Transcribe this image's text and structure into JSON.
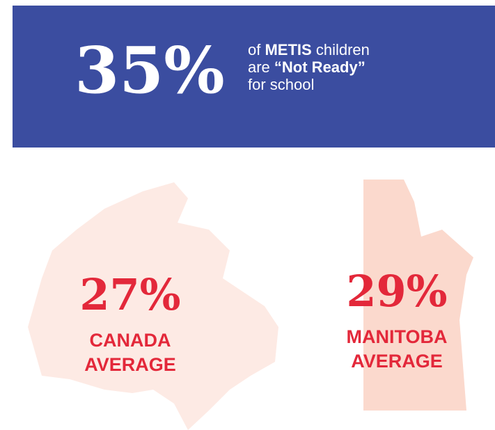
{
  "banner": {
    "stat": "35%",
    "line1": {
      "pre": "of",
      "bold": "METIS",
      "post": "children"
    },
    "line2": {
      "pre": "are",
      "bold": "“Not Ready”"
    },
    "line3": "for school"
  },
  "regions": [
    {
      "stat": "27%",
      "name": "CANADA",
      "label": "AVERAGE"
    },
    {
      "stat": "29%",
      "name": "MANITOBA",
      "label": "AVERAGE"
    }
  ]
}
